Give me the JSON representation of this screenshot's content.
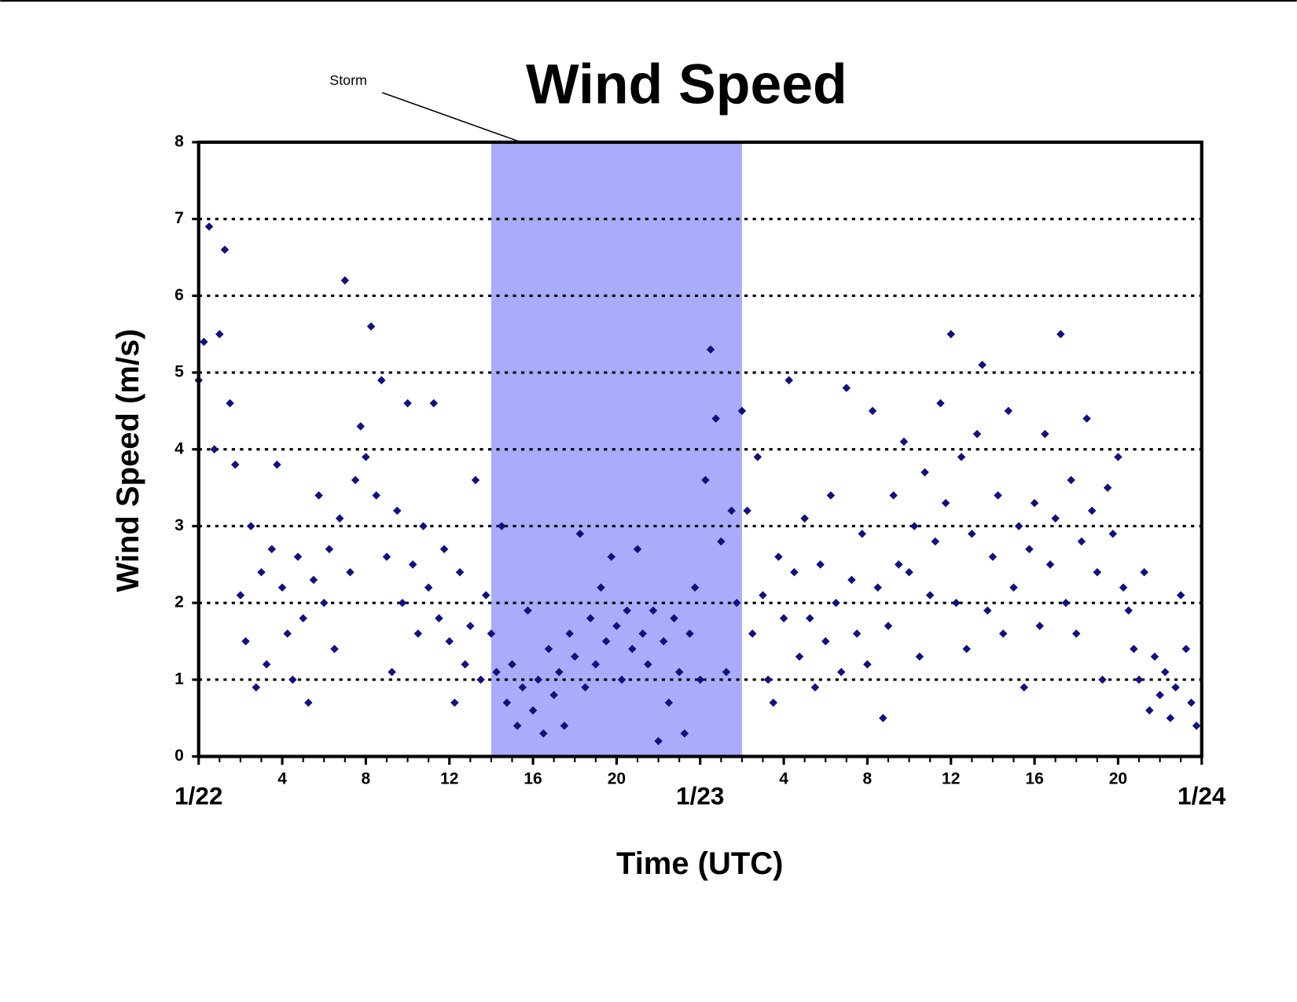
{
  "chart_data": {
    "type": "scatter",
    "title": "Wind Speed",
    "x_label": "Time (UTC)",
    "y_label": "Wind Speed (m/s)",
    "annotation": {
      "text": "Storm",
      "span": [
        14,
        26
      ],
      "color": "#a9acfa"
    },
    "xlim": [
      0,
      48
    ],
    "ylim": [
      0,
      8
    ],
    "xticks": [
      {
        "value": 0,
        "label": "1/22"
      },
      4,
      8,
      12,
      16,
      20,
      {
        "value": 24,
        "label": "1/23"
      },
      {
        "value": 28,
        "label": "4"
      },
      {
        "value": 32,
        "label": "8"
      },
      {
        "value": 36,
        "label": "12"
      },
      {
        "value": 40,
        "label": "16"
      },
      {
        "value": 44,
        "label": "20"
      },
      {
        "value": 48,
        "label": "1/24"
      }
    ],
    "xminor_ticks": [
      1,
      2,
      3,
      5,
      6,
      7,
      9,
      10,
      11,
      13,
      14,
      15,
      17,
      18,
      19,
      21,
      22,
      23,
      25,
      26,
      27,
      29,
      30,
      31,
      33,
      34,
      35,
      37,
      38,
      39,
      41,
      42,
      43,
      45,
      46,
      47
    ],
    "yticks": [
      0,
      1,
      2,
      3,
      4,
      5,
      6,
      7,
      8
    ],
    "grid": true,
    "marker": "diamond",
    "color": "#10107f",
    "x": [
      0,
      0.25,
      0.5,
      0.75,
      1,
      1.25,
      1.5,
      1.75,
      2,
      2.25,
      2.5,
      2.75,
      3,
      3.25,
      3.5,
      3.75,
      4,
      4.25,
      4.5,
      4.75,
      5,
      5.25,
      5.5,
      5.75,
      6,
      6.25,
      6.5,
      6.75,
      7,
      7.25,
      7.5,
      7.75,
      8,
      8.25,
      8.5,
      8.75,
      9,
      9.25,
      9.5,
      9.75,
      10,
      10.25,
      10.5,
      10.75,
      11,
      11.25,
      11.5,
      11.75,
      12,
      12.25,
      12.5,
      12.75,
      13,
      13.25,
      13.5,
      13.75,
      14,
      14.25,
      14.5,
      14.75,
      15,
      15.25,
      15.5,
      15.75,
      16,
      16.25,
      16.5,
      16.75,
      17,
      17.25,
      17.5,
      17.75,
      18,
      18.25,
      18.5,
      18.75,
      19,
      19.25,
      19.5,
      19.75,
      20,
      20.25,
      20.5,
      20.75,
      21,
      21.25,
      21.5,
      21.75,
      22,
      22.25,
      22.5,
      22.75,
      23,
      23.25,
      23.5,
      23.75,
      24,
      24.25,
      24.5,
      24.75,
      25,
      25.25,
      25.5,
      25.75,
      26,
      26.25,
      26.5,
      26.75,
      27,
      27.25,
      27.5,
      27.75,
      28,
      28.25,
      28.5,
      28.75,
      29,
      29.25,
      29.5,
      29.75,
      30,
      30.25,
      30.5,
      30.75,
      31,
      31.25,
      31.5,
      31.75,
      32,
      32.25,
      32.5,
      32.75,
      33,
      33.25,
      33.5,
      33.75,
      34,
      34.25,
      34.5,
      34.75,
      35,
      35.25,
      35.5,
      35.75,
      36,
      36.25,
      36.5,
      36.75,
      37,
      37.25,
      37.5,
      37.75,
      38,
      38.25,
      38.5,
      38.75,
      39,
      39.25,
      39.5,
      39.75,
      40,
      40.25,
      40.5,
      40.75,
      41,
      41.25,
      41.5,
      41.75,
      42,
      42.25,
      42.5,
      42.75,
      43,
      43.25,
      43.5,
      43.75,
      44,
      44.25,
      44.5,
      44.75,
      45,
      45.25,
      45.5,
      45.75,
      46,
      46.25,
      46.5,
      46.75,
      47,
      47.25,
      47.5,
      47.75
    ],
    "values": [
      4.9,
      5.4,
      6.9,
      4.0,
      5.5,
      6.6,
      4.6,
      3.8,
      2.1,
      1.5,
      3.0,
      0.9,
      2.4,
      1.2,
      2.7,
      3.8,
      2.2,
      1.6,
      1.0,
      2.6,
      1.8,
      0.7,
      2.3,
      3.4,
      2.0,
      2.7,
      1.4,
      3.1,
      6.2,
      2.4,
      3.6,
      4.3,
      3.9,
      5.6,
      3.4,
      4.9,
      2.6,
      1.1,
      3.2,
      2.0,
      4.6,
      2.5,
      1.6,
      3.0,
      2.2,
      4.6,
      1.8,
      2.7,
      1.5,
      0.7,
      2.4,
      1.2,
      1.7,
      3.6,
      1.0,
      2.1,
      1.6,
      1.1,
      3.0,
      0.7,
      1.2,
      0.4,
      0.9,
      1.9,
      0.6,
      1.0,
      0.3,
      1.4,
      0.8,
      1.1,
      0.4,
      1.6,
      1.3,
      2.9,
      0.9,
      1.8,
      1.2,
      2.2,
      1.5,
      2.6,
      1.7,
      1.0,
      1.9,
      1.4,
      2.7,
      1.6,
      1.2,
      1.9,
      0.2,
      1.5,
      0.7,
      1.8,
      1.1,
      0.3,
      1.6,
      2.2,
      1.0,
      3.6,
      5.3,
      4.4,
      2.8,
      1.1,
      3.2,
      2.0,
      4.5,
      3.2,
      1.6,
      3.9,
      2.1,
      1.0,
      0.7,
      2.6,
      1.8,
      4.9,
      2.4,
      1.3,
      3.1,
      1.8,
      0.9,
      2.5,
      1.5,
      3.4,
      2.0,
      1.1,
      4.8,
      2.3,
      1.6,
      2.9,
      1.2,
      4.5,
      2.2,
      0.5,
      1.7,
      3.4,
      2.5,
      4.1,
      2.4,
      3.0,
      1.3,
      3.7,
      2.1,
      2.8,
      4.6,
      3.3,
      5.5,
      2.0,
      3.9,
      1.4,
      2.9,
      4.2,
      5.1,
      1.9,
      2.6,
      3.4,
      1.6,
      4.5,
      2.2,
      3.0,
      0.9,
      2.7,
      3.3,
      1.7,
      4.2,
      2.5,
      3.1,
      5.5,
      2.0,
      3.6,
      1.6,
      2.8,
      4.4,
      3.2,
      2.4,
      1.0,
      3.5,
      2.9,
      3.9,
      2.2,
      1.9,
      1.4,
      1.0,
      2.4,
      0.6,
      1.3,
      0.8,
      1.1,
      0.5,
      0.9,
      2.1,
      1.4,
      0.7,
      0.4
    ]
  }
}
